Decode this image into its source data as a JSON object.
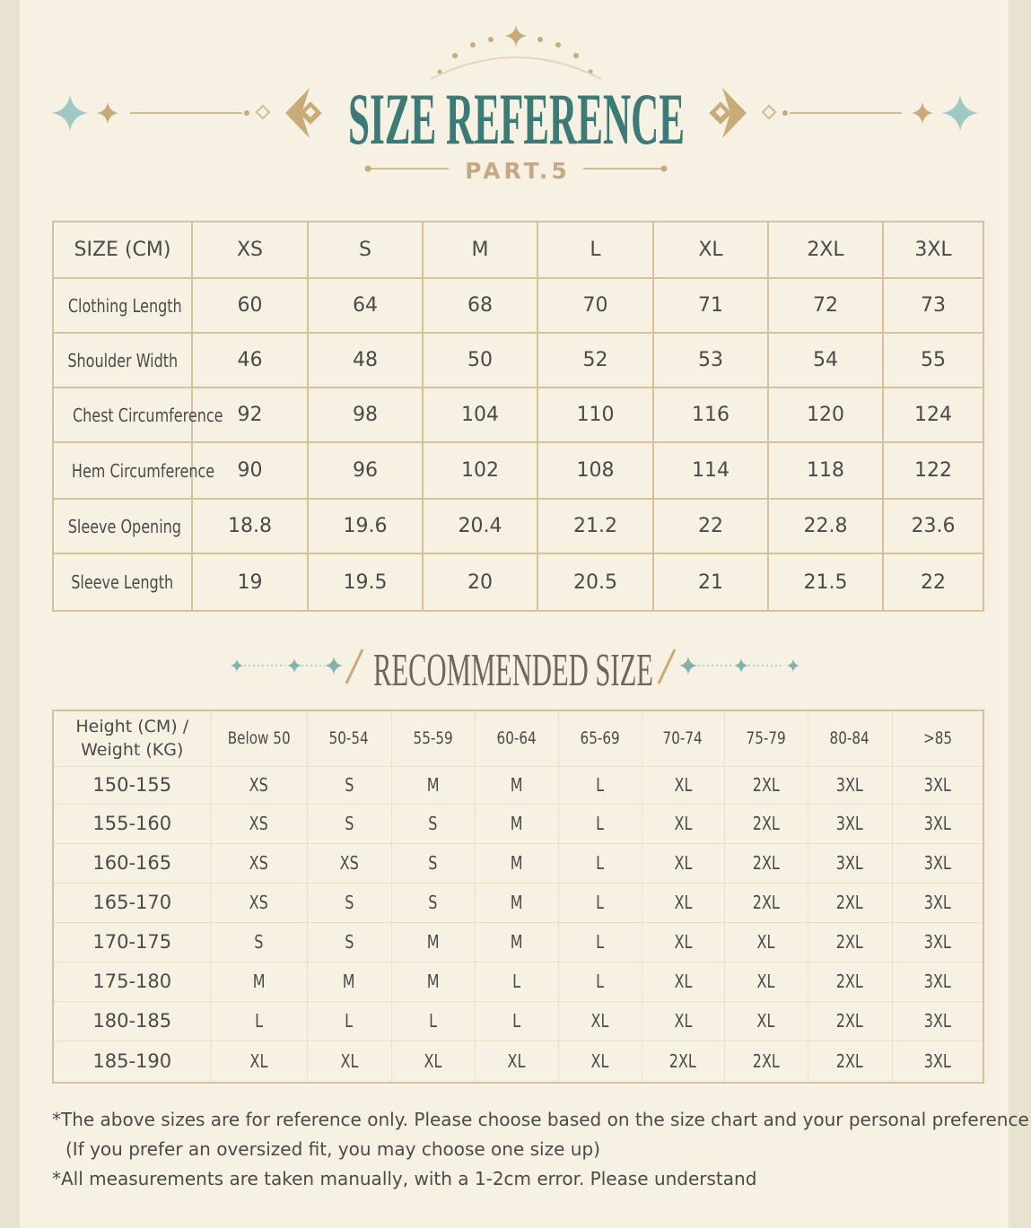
{
  "header": {
    "title": "SIZE REFERENCE",
    "subtitle": "PART.5"
  },
  "size_table": {
    "columns": [
      "SIZE (CM)",
      "XS",
      "S",
      "M",
      "L",
      "XL",
      "2XL",
      "3XL"
    ],
    "rows": [
      [
        "Clothing Length",
        "60",
        "64",
        "68",
        "70",
        "71",
        "72",
        "73"
      ],
      [
        "Shoulder Width",
        "46",
        "48",
        "50",
        "52",
        "53",
        "54",
        "55"
      ],
      [
        "Chest Circumference",
        "92",
        "98",
        "104",
        "110",
        "116",
        "120",
        "124"
      ],
      [
        "Hem Circumference",
        "90",
        "96",
        "102",
        "108",
        "114",
        "118",
        "122"
      ],
      [
        "Sleeve Opening",
        "18.8",
        "19.6",
        "20.4",
        "21.2",
        "22",
        "22.8",
        "23.6"
      ],
      [
        "Sleeve Length",
        "19",
        "19.5",
        "20",
        "20.5",
        "21",
        "21.5",
        "22"
      ]
    ]
  },
  "recommended": {
    "title": "RECOMMENDED SIZE",
    "columns": [
      "Height (CM) / Weight (KG)",
      "Below 50",
      "50-54",
      "55-59",
      "60-64",
      "65-69",
      "70-74",
      "75-79",
      "80-84",
      ">85"
    ],
    "rows": [
      [
        "150-155",
        "XS",
        "S",
        "M",
        "M",
        "L",
        "XL",
        "2XL",
        "3XL",
        "3XL"
      ],
      [
        "155-160",
        "XS",
        "S",
        "S",
        "M",
        "L",
        "XL",
        "2XL",
        "3XL",
        "3XL"
      ],
      [
        "160-165",
        "XS",
        "XS",
        "S",
        "M",
        "L",
        "XL",
        "2XL",
        "3XL",
        "3XL"
      ],
      [
        "165-170",
        "XS",
        "S",
        "S",
        "M",
        "L",
        "XL",
        "2XL",
        "2XL",
        "3XL"
      ],
      [
        "170-175",
        "S",
        "S",
        "M",
        "M",
        "L",
        "XL",
        "XL",
        "2XL",
        "3XL"
      ],
      [
        "175-180",
        "M",
        "M",
        "M",
        "L",
        "L",
        "XL",
        "XL",
        "2XL",
        "3XL"
      ],
      [
        "180-185",
        "L",
        "L",
        "L",
        "L",
        "XL",
        "XL",
        "XL",
        "2XL",
        "3XL"
      ],
      [
        "185-190",
        "XL",
        "XL",
        "XL",
        "XL",
        "XL",
        "2XL",
        "2XL",
        "2XL",
        "3XL"
      ]
    ]
  },
  "notes": [
    "*The above sizes are for reference only. Please choose based on the size chart and your personal preference",
    "(If you prefer an oversized fit, you may choose one size up)",
    "*All measurements are taken manually, with a 1-2cm error. Please understand"
  ]
}
